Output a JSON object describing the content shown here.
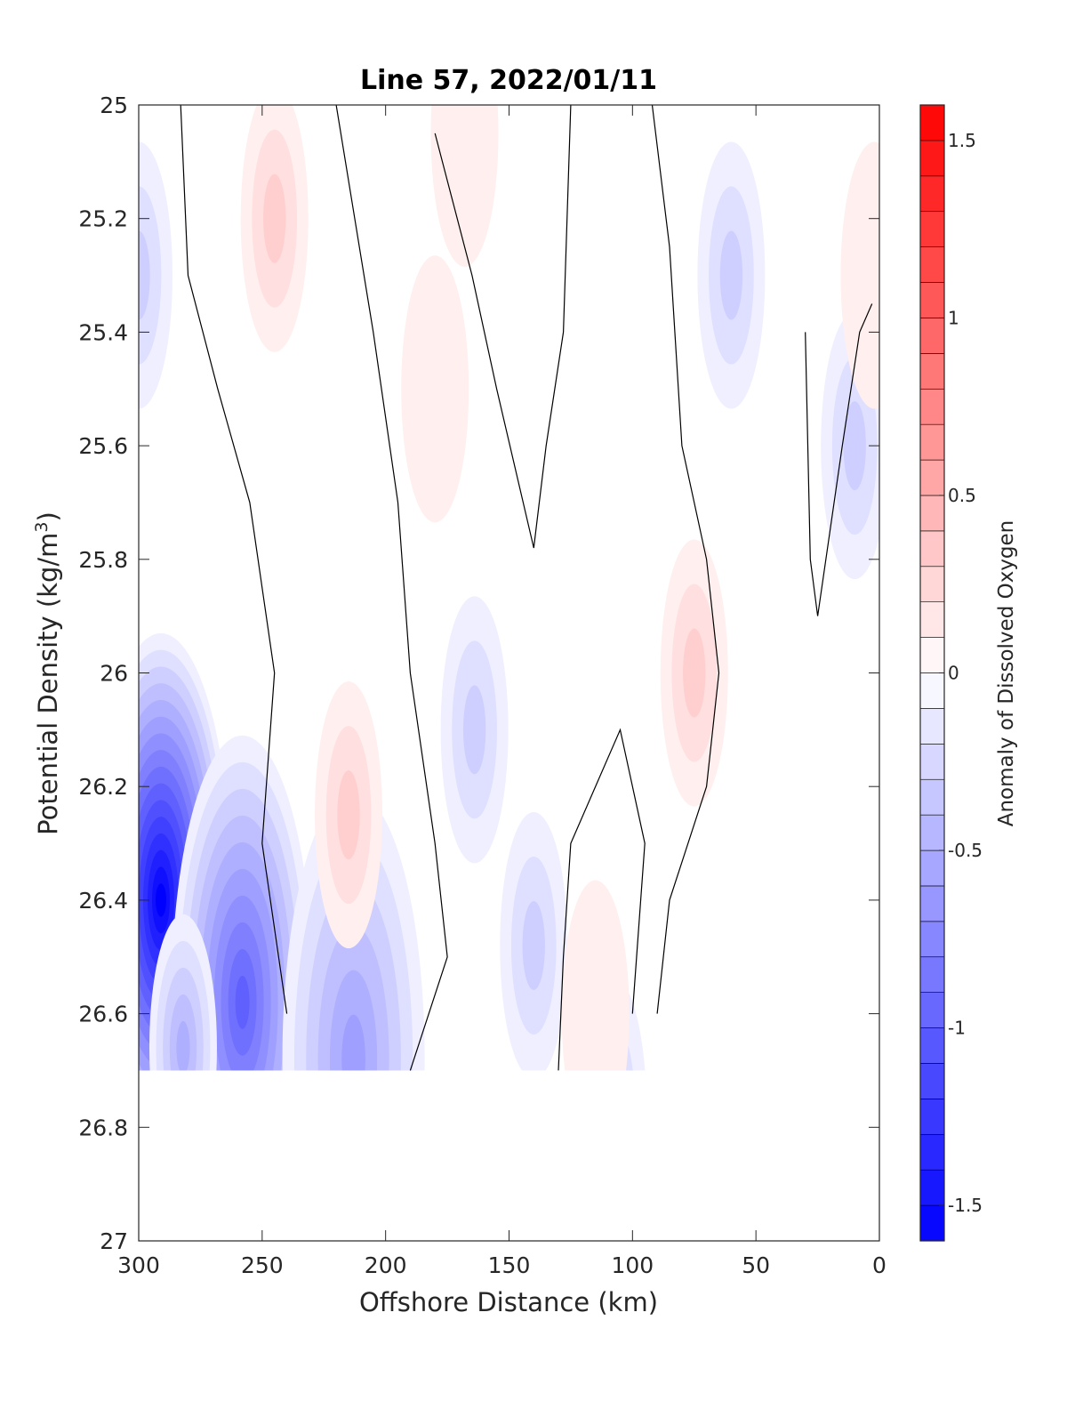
{
  "chart_data": {
    "type": "heatmap",
    "title": "Line 57, 2022/01/11",
    "xlabel": "Offshore Distance (km)",
    "ylabel_main": "Potential Density (kg/m",
    "ylabel_sup": "3",
    "ylabel_end": ")",
    "xlim": [
      300,
      0
    ],
    "x_reversed": true,
    "ylim": [
      25,
      27
    ],
    "y_reversed": true,
    "x_ticks": [
      300,
      250,
      200,
      150,
      100,
      50,
      0
    ],
    "y_ticks": [
      25,
      25.2,
      25.4,
      25.6,
      25.8,
      26,
      26.2,
      26.4,
      26.6,
      26.8,
      27
    ],
    "x_tick_labels": [
      "300",
      "250",
      "200",
      "150",
      "100",
      "50",
      "0"
    ],
    "y_tick_labels": [
      "25",
      "25.2",
      "25.4",
      "25.6",
      "25.8",
      "26",
      "26.2",
      "26.4",
      "26.6",
      "26.8",
      "27"
    ],
    "colorbar": {
      "label": "Anomaly of Dissolved Oxygen",
      "range": [
        -1.6,
        1.6
      ],
      "levels_step": 0.1,
      "colormap": "blue-white-red",
      "low_color": "#0000ff",
      "mid_color": "#ffffff",
      "high_color": "#ff0000",
      "ticks": [
        -1.5,
        -1,
        -0.5,
        0,
        0.5,
        1,
        1.5
      ],
      "tick_labels": [
        "-1.5",
        "-1",
        "-0.5",
        "0",
        "0.5",
        "1",
        "1.5"
      ]
    },
    "zero_contour_color": "#000000",
    "features": [
      {
        "kind": "negative",
        "x": 291,
        "y": 26.4,
        "peak": -1.6
      },
      {
        "kind": "negative",
        "x": 300,
        "y": 25.3,
        "peak": -0.3
      },
      {
        "kind": "negative",
        "x": 258,
        "y": 26.58,
        "peak": -1.0
      },
      {
        "kind": "negative",
        "x": 213,
        "y": 26.68,
        "peak": -0.6
      },
      {
        "kind": "negative",
        "x": 282,
        "y": 26.66,
        "peak": -0.45
      },
      {
        "kind": "negative",
        "x": 164,
        "y": 26.1,
        "peak": -0.3
      },
      {
        "kind": "negative",
        "x": 140,
        "y": 26.48,
        "peak": -0.3
      },
      {
        "kind": "negative",
        "x": 60,
        "y": 25.3,
        "peak": -0.3
      },
      {
        "kind": "negative",
        "x": 108,
        "y": 26.77,
        "peak": -0.25
      },
      {
        "kind": "negative",
        "x": 10,
        "y": 25.6,
        "peak": -0.25
      },
      {
        "kind": "positive",
        "x": 245,
        "y": 25.2,
        "peak": 0.25
      },
      {
        "kind": "positive",
        "x": 215,
        "y": 26.25,
        "peak": 0.3
      },
      {
        "kind": "positive",
        "x": 168,
        "y": 25.05,
        "peak": 0.15
      },
      {
        "kind": "positive",
        "x": 180,
        "y": 25.5,
        "peak": 0.15
      },
      {
        "kind": "positive",
        "x": 75,
        "y": 26.0,
        "peak": 0.25
      },
      {
        "kind": "positive",
        "x": 115,
        "y": 26.6,
        "peak": 0.15
      },
      {
        "kind": "positive",
        "x": 2,
        "y": 25.3,
        "peak": 0.15
      }
    ]
  }
}
